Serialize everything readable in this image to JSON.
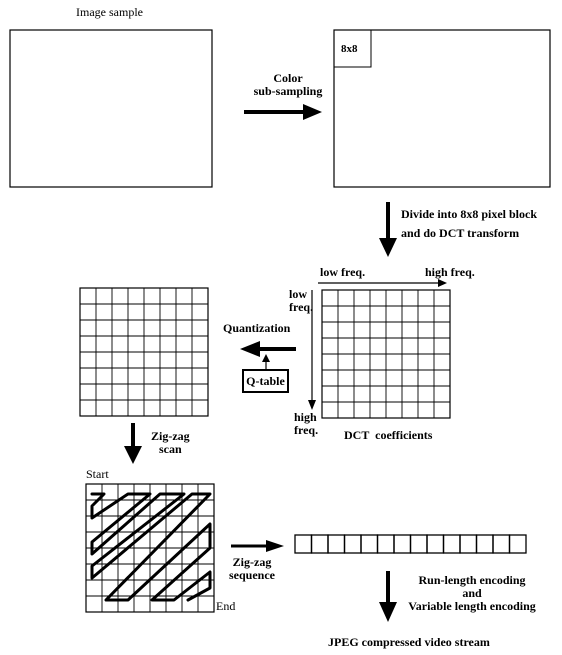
{
  "labels": {
    "image_sample": "Image sample",
    "color_line1": "Color",
    "color_line2": "sub-sampling",
    "block_label": "8x8",
    "divide_line1": "Divide into 8x8 pixel block",
    "divide_line2": "and do DCT transform",
    "low_freq_top": "low freq.",
    "high_freq_top": "high freq.",
    "low_freq_side_1": "low",
    "low_freq_side_2": "freq.",
    "high_freq_side_1": "high",
    "high_freq_side_2": "freq.",
    "dct_coefficients": "DCT  coefficients",
    "quantization": "Quantization",
    "q_table": "Q-table",
    "zigzag_scan_1": "Zig-zag",
    "zigzag_scan_2": "scan",
    "start": "Start",
    "end": "End",
    "zigzag_seq_1": "Zig-zag",
    "zigzag_seq_2": "sequence",
    "rle_1": "Run-length encoding",
    "rle_2": "and",
    "rle_3": "Variable length encoding",
    "output": "JPEG compressed video stream"
  },
  "grids": {
    "rows": 8,
    "cols": 8
  },
  "sequence_cells": 14
}
